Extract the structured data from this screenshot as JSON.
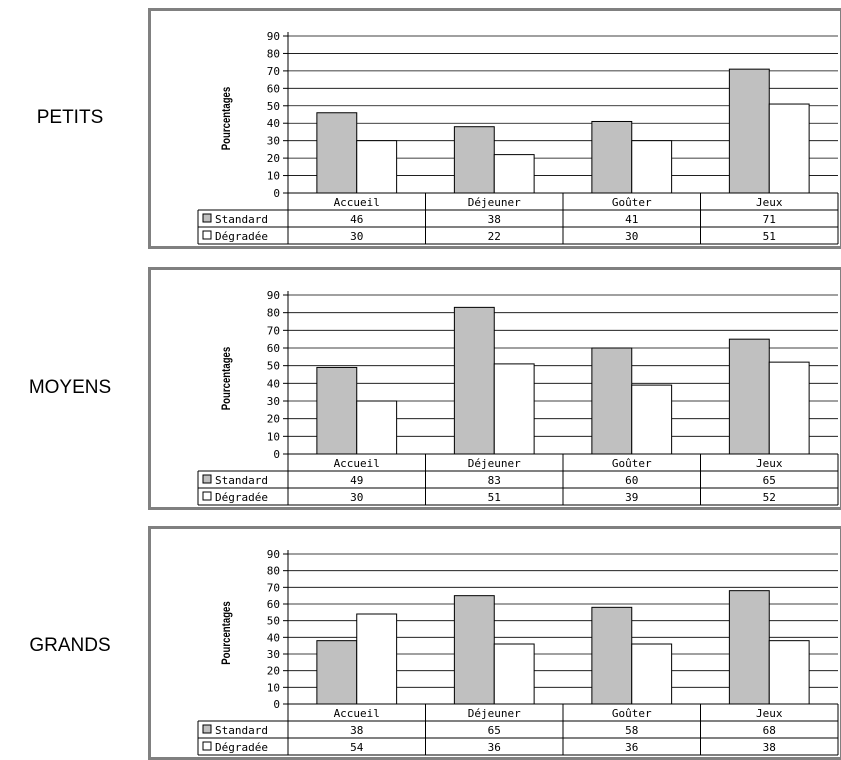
{
  "group_labels": [
    "PETITS",
    "MOYENS",
    "GRANDS"
  ],
  "colors": {
    "standard": "#c0c0c0",
    "degradee": "#ffffff",
    "frame": "#808080",
    "plot": "#ffffff",
    "line": "#000000"
  },
  "chart_data": [
    {
      "type": "bar",
      "ylabel": "Pourcentages",
      "ylim": [
        0,
        90
      ],
      "yticks": [
        "0",
        "10",
        "20",
        "30",
        "40",
        "50",
        "60",
        "70",
        "80",
        "90"
      ],
      "grid": true,
      "categories": [
        "Accueil",
        "Déjeuner",
        "Goûter",
        "Jeux"
      ],
      "series": [
        {
          "name": "Standard",
          "values": [
            46,
            38,
            41,
            71
          ],
          "labels": [
            "46",
            "38",
            "41",
            "71"
          ]
        },
        {
          "name": "Dégradée",
          "values": [
            30,
            22,
            30,
            51
          ],
          "labels": [
            "30",
            "22",
            "30",
            "51"
          ]
        }
      ]
    },
    {
      "type": "bar",
      "ylabel": "Pourcentages",
      "ylim": [
        0,
        90
      ],
      "yticks": [
        "0",
        "10",
        "20",
        "30",
        "40",
        "50",
        "60",
        "70",
        "80",
        "90"
      ],
      "grid": true,
      "categories": [
        "Accueil",
        "Déjeuner",
        "Goûter",
        "Jeux"
      ],
      "series": [
        {
          "name": "Standard",
          "values": [
            49,
            83,
            60,
            65
          ],
          "labels": [
            "49",
            "83",
            "60",
            "65"
          ]
        },
        {
          "name": "Dégradée",
          "values": [
            30,
            51,
            39,
            52
          ],
          "labels": [
            "30",
            "51",
            "39",
            "52"
          ]
        }
      ]
    },
    {
      "type": "bar",
      "ylabel": "Pourcentages",
      "ylim": [
        0,
        90
      ],
      "yticks": [
        "0",
        "10",
        "20",
        "30",
        "40",
        "50",
        "60",
        "70",
        "80",
        "90"
      ],
      "grid": true,
      "categories": [
        "Accueil",
        "Déjeuner",
        "Goûter",
        "Jeux"
      ],
      "series": [
        {
          "name": "Standard",
          "values": [
            38,
            65,
            58,
            68
          ],
          "labels": [
            "38",
            "65",
            "58",
            "68"
          ]
        },
        {
          "name": "Dégradée",
          "values": [
            54,
            36,
            36,
            38
          ],
          "labels": [
            "54",
            "36",
            "36",
            "38"
          ]
        }
      ]
    }
  ]
}
